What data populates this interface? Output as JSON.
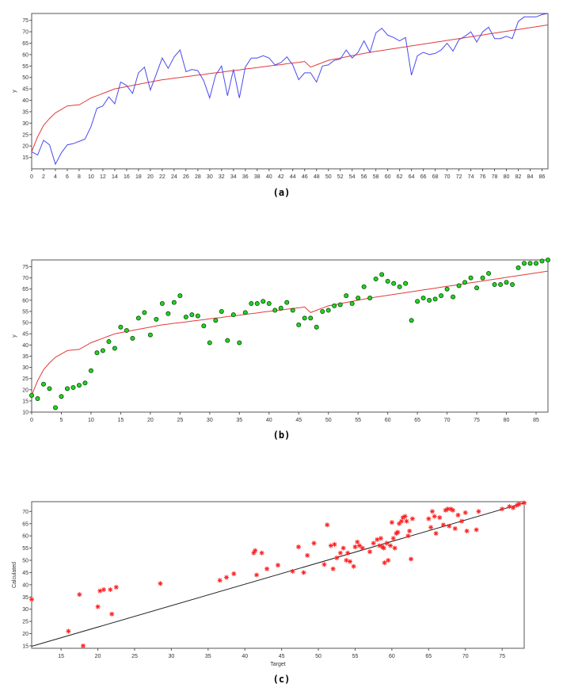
{
  "captions": [
    "(a)",
    "(b)",
    "(c)"
  ],
  "colors": {
    "observed_line": "#4a4af0",
    "fit_line": "#e23b3b",
    "marker_fill": "#22d422",
    "marker_edge": "#0a4a0a",
    "scatter_marker": "#ff2020",
    "diagonal": "#222222"
  },
  "shared": {
    "observed": [
      17.5,
      16,
      22.5,
      20.5,
      12,
      17,
      20.5,
      21,
      22,
      23,
      28.5,
      36.5,
      37.5,
      41.5,
      38.5,
      48,
      46.5,
      43,
      52,
      54.5,
      44.5,
      51.5,
      58.5,
      54,
      59,
      62,
      52.5,
      53.5,
      53,
      48.5,
      41,
      51,
      55,
      42,
      53.5,
      41,
      54.5,
      58.5,
      58.5,
      59.5,
      58.5,
      55.5,
      56.5,
      59,
      55.5,
      49,
      52,
      52,
      48,
      55,
      55.5,
      57.5,
      58,
      62,
      58.5,
      61,
      66,
      61,
      69.5,
      71.5,
      68.5,
      67.5,
      66,
      67.5,
      51,
      59.5,
      61,
      60,
      60.5,
      62,
      65,
      61.5,
      66.5,
      68,
      70,
      65.5,
      70,
      72,
      67,
      67,
      68,
      67,
      74.5,
      76.5,
      76.5,
      76.5,
      77.5,
      78
    ],
    "fit": [
      17.5,
      24,
      29,
      32,
      34.5,
      36,
      37.5,
      37.8,
      38,
      39.5,
      41,
      42,
      43,
      44,
      45,
      45.5,
      46,
      46.5,
      47,
      47.5,
      48,
      48.5,
      49,
      49.3,
      49.7,
      50,
      50.3,
      50.7,
      51,
      51.3,
      51.7,
      52,
      52.3,
      52.7,
      53,
      53.3,
      53.7,
      54,
      54.3,
      54.7,
      55,
      55.3,
      55.6,
      56,
      56.3,
      56.6,
      57,
      54.5,
      55.5,
      56.5,
      57.5,
      58,
      58.5,
      59,
      59.5,
      60,
      60.5,
      61,
      61.4,
      61.8,
      62.2,
      62.6,
      63,
      63.4,
      63.8,
      64.2,
      64.6,
      65,
      65.4,
      65.8,
      66.2,
      66.6,
      67,
      67.4,
      67.8,
      68.2,
      68.6,
      69,
      69.4,
      69.8,
      70.2,
      70.6,
      71,
      71.4,
      71.8,
      72.2,
      72.6,
      73
    ]
  },
  "chart_data": [
    {
      "type": "line",
      "caption": "(a)",
      "ylabel": "y",
      "xlabel": "",
      "xlim": [
        0,
        87
      ],
      "ylim": [
        10,
        78
      ],
      "xticks": [
        0,
        2,
        4,
        6,
        8,
        10,
        12,
        14,
        16,
        18,
        20,
        22,
        24,
        26,
        28,
        30,
        32,
        34,
        36,
        38,
        40,
        42,
        44,
        46,
        48,
        50,
        52,
        54,
        56,
        58,
        60,
        62,
        64,
        66,
        68,
        70,
        72,
        74,
        76,
        78,
        80,
        82,
        84,
        86
      ],
      "yticks": [
        15,
        20,
        25,
        30,
        35,
        40,
        45,
        50,
        55,
        60,
        65,
        70,
        75
      ],
      "series": [
        {
          "role": "observed",
          "style": "line"
        },
        {
          "role": "fit",
          "style": "line"
        }
      ],
      "x": "index 0..87"
    },
    {
      "type": "scatter",
      "caption": "(b)",
      "ylabel": "y",
      "xlabel": "",
      "xlim": [
        0,
        87
      ],
      "ylim": [
        10,
        78
      ],
      "xticks": [
        0,
        5,
        10,
        15,
        20,
        25,
        30,
        35,
        40,
        45,
        50,
        55,
        60,
        65,
        70,
        75,
        80,
        85
      ],
      "yticks": [
        10,
        15,
        20,
        25,
        30,
        35,
        40,
        45,
        50,
        55,
        60,
        65,
        70,
        75
      ],
      "series": [
        {
          "role": "observed",
          "style": "markers"
        },
        {
          "role": "fit",
          "style": "line"
        }
      ],
      "x": "index 0..87"
    },
    {
      "type": "scatter",
      "caption": "(c)",
      "xlabel": "Target",
      "ylabel": "Calculated",
      "xlim": [
        11,
        78
      ],
      "ylim": [
        14,
        74
      ],
      "xticks": [
        15,
        20,
        25,
        30,
        35,
        40,
        45,
        50,
        55,
        60,
        65,
        70,
        75
      ],
      "yticks": [
        15,
        20,
        25,
        30,
        35,
        40,
        45,
        50,
        55,
        60,
        65,
        70
      ],
      "diagonal": [
        [
          11,
          14.8
        ],
        [
          78,
          73.5
        ]
      ],
      "points": [
        [
          11,
          34
        ],
        [
          16,
          21
        ],
        [
          17.5,
          36
        ],
        [
          18,
          15
        ],
        [
          20,
          31
        ],
        [
          20.3,
          37.5
        ],
        [
          20.8,
          38
        ],
        [
          21.7,
          38
        ],
        [
          21.9,
          28
        ],
        [
          22.5,
          39
        ],
        [
          28.5,
          40.5
        ],
        [
          36.6,
          41.8
        ],
        [
          37.5,
          43
        ],
        [
          38.5,
          44.5
        ],
        [
          41.2,
          53
        ],
        [
          41.4,
          54
        ],
        [
          41.6,
          44
        ],
        [
          42.3,
          53
        ],
        [
          43,
          46.5
        ],
        [
          44.5,
          48
        ],
        [
          46.5,
          45.5
        ],
        [
          47.3,
          55.5
        ],
        [
          48,
          45
        ],
        [
          48.5,
          52
        ],
        [
          49.4,
          57
        ],
        [
          50.8,
          48.3
        ],
        [
          51.2,
          64.5
        ],
        [
          51.7,
          56
        ],
        [
          52,
          46.5
        ],
        [
          52.2,
          56.5
        ],
        [
          52.5,
          51
        ],
        [
          53,
          53
        ],
        [
          53.4,
          55
        ],
        [
          53.8,
          50
        ],
        [
          54,
          53
        ],
        [
          54.3,
          49.5
        ],
        [
          54.8,
          47.5
        ],
        [
          55,
          55.5
        ],
        [
          55.3,
          57.5
        ],
        [
          55.6,
          56
        ],
        [
          56,
          55
        ],
        [
          57,
          53.5
        ],
        [
          57.5,
          57
        ],
        [
          58,
          58.5
        ],
        [
          58.3,
          56
        ],
        [
          58.5,
          59
        ],
        [
          58.7,
          55.5
        ],
        [
          58.9,
          55
        ],
        [
          59,
          49
        ],
        [
          59.3,
          57
        ],
        [
          59.5,
          50
        ],
        [
          59.8,
          56
        ],
        [
          60,
          65.5
        ],
        [
          60.2,
          59
        ],
        [
          60.4,
          55
        ],
        [
          60.6,
          61
        ],
        [
          60.8,
          61.5
        ],
        [
          61,
          65
        ],
        [
          61.3,
          66
        ],
        [
          61.5,
          67.5
        ],
        [
          61.8,
          68
        ],
        [
          62,
          66
        ],
        [
          62.2,
          60
        ],
        [
          62.4,
          62
        ],
        [
          62.6,
          50.5
        ],
        [
          62.8,
          67
        ],
        [
          65,
          67
        ],
        [
          65.3,
          63.5
        ],
        [
          65.5,
          70
        ],
        [
          65.8,
          68
        ],
        [
          66,
          61
        ],
        [
          66.5,
          67.5
        ],
        [
          67,
          64.5
        ],
        [
          67.3,
          70.5
        ],
        [
          67.6,
          71
        ],
        [
          67.8,
          64
        ],
        [
          68,
          71
        ],
        [
          68.3,
          70.5
        ],
        [
          68.6,
          63
        ],
        [
          69,
          68.5
        ],
        [
          69.5,
          66
        ],
        [
          70,
          69.5
        ],
        [
          70.2,
          62
        ],
        [
          71.5,
          62.5
        ],
        [
          71.8,
          70
        ],
        [
          75,
          71
        ],
        [
          76,
          72
        ],
        [
          76.5,
          71.5
        ],
        [
          77,
          72.5
        ],
        [
          77.3,
          73
        ],
        [
          78,
          73.5
        ]
      ]
    }
  ]
}
